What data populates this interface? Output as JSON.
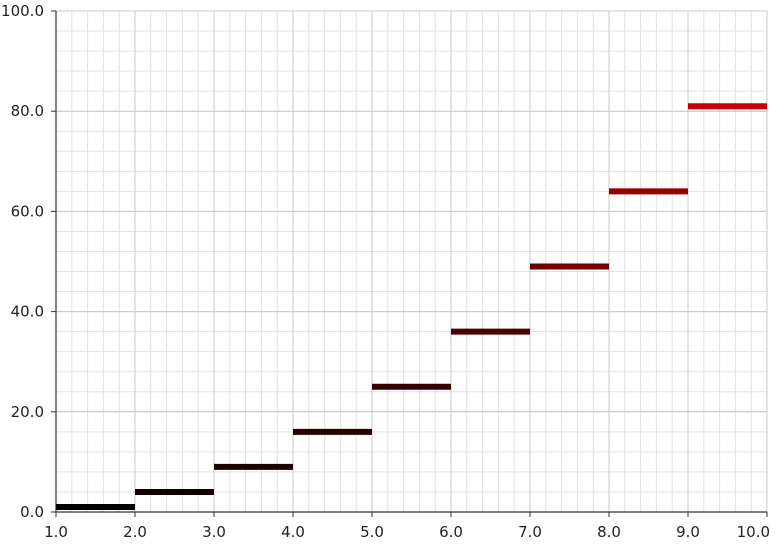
{
  "chart_data": {
    "type": "step",
    "title": "",
    "xlabel": "",
    "ylabel": "",
    "xlim": [
      1.0,
      10.0
    ],
    "ylim": [
      0.0,
      100.0
    ],
    "grid": true,
    "x_ticks": [
      "1.0",
      "2.0",
      "3.0",
      "4.0",
      "5.0",
      "6.0",
      "7.0",
      "8.0",
      "9.0",
      "10.0"
    ],
    "y_ticks": [
      "0.0",
      "20.0",
      "40.0",
      "60.0",
      "80.0",
      "100.0"
    ],
    "series": [
      {
        "segments": [
          {
            "x0": 1.0,
            "x1": 2.0,
            "y": 1.0,
            "color": "#000000"
          },
          {
            "x0": 2.0,
            "x1": 3.0,
            "y": 4.0,
            "color": "#120000"
          },
          {
            "x0": 3.0,
            "x1": 4.0,
            "y": 9.0,
            "color": "#1c0000"
          },
          {
            "x0": 4.0,
            "x1": 5.0,
            "y": 16.0,
            "color": "#260000"
          },
          {
            "x0": 5.0,
            "x1": 6.0,
            "y": 25.0,
            "color": "#360000"
          },
          {
            "x0": 6.0,
            "x1": 7.0,
            "y": 36.0,
            "color": "#4d0000"
          },
          {
            "x0": 7.0,
            "x1": 8.0,
            "y": 49.0,
            "color": "#6e0000"
          },
          {
            "x0": 8.0,
            "x1": 9.0,
            "y": 64.0,
            "color": "#960000"
          },
          {
            "x0": 9.0,
            "x1": 10.0,
            "y": 81.0,
            "color": "#c80000"
          }
        ]
      }
    ]
  }
}
